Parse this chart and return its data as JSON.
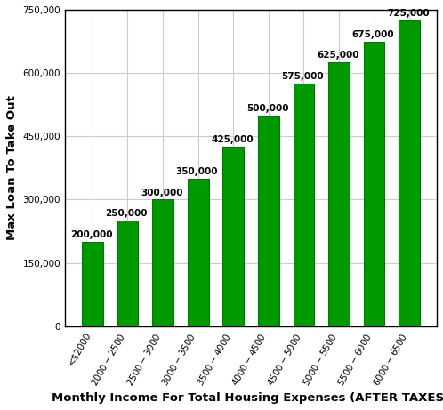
{
  "categories": [
    "<$2000",
    "$2000-$2500",
    "$2500-$3000",
    "$3000-$3500",
    "$3500-$4000",
    "$4000-$4500",
    "$4500-$5000",
    "$5000-$5500",
    "$5500-$6000",
    "$6000-$6500"
  ],
  "values": [
    200000,
    250000,
    300000,
    350000,
    425000,
    500000,
    575000,
    625000,
    675000,
    725000
  ],
  "bar_color": "#009a00",
  "bar_edge_color": "#007700",
  "ylabel": "Max Loan To Take Out",
  "xlabel": "Monthly Income For Total Housing Expenses (AFTER TAXES)",
  "ylim": [
    0,
    750000
  ],
  "yticks": [
    0,
    150000,
    300000,
    450000,
    600000,
    750000
  ],
  "grid_color": "#cccccc",
  "background_color": "#ffffff",
  "tick_label_fontsize": 7.5,
  "axis_label_fontsize": 9.5,
  "bar_label_fontsize": 7.5,
  "bar_width": 0.6
}
